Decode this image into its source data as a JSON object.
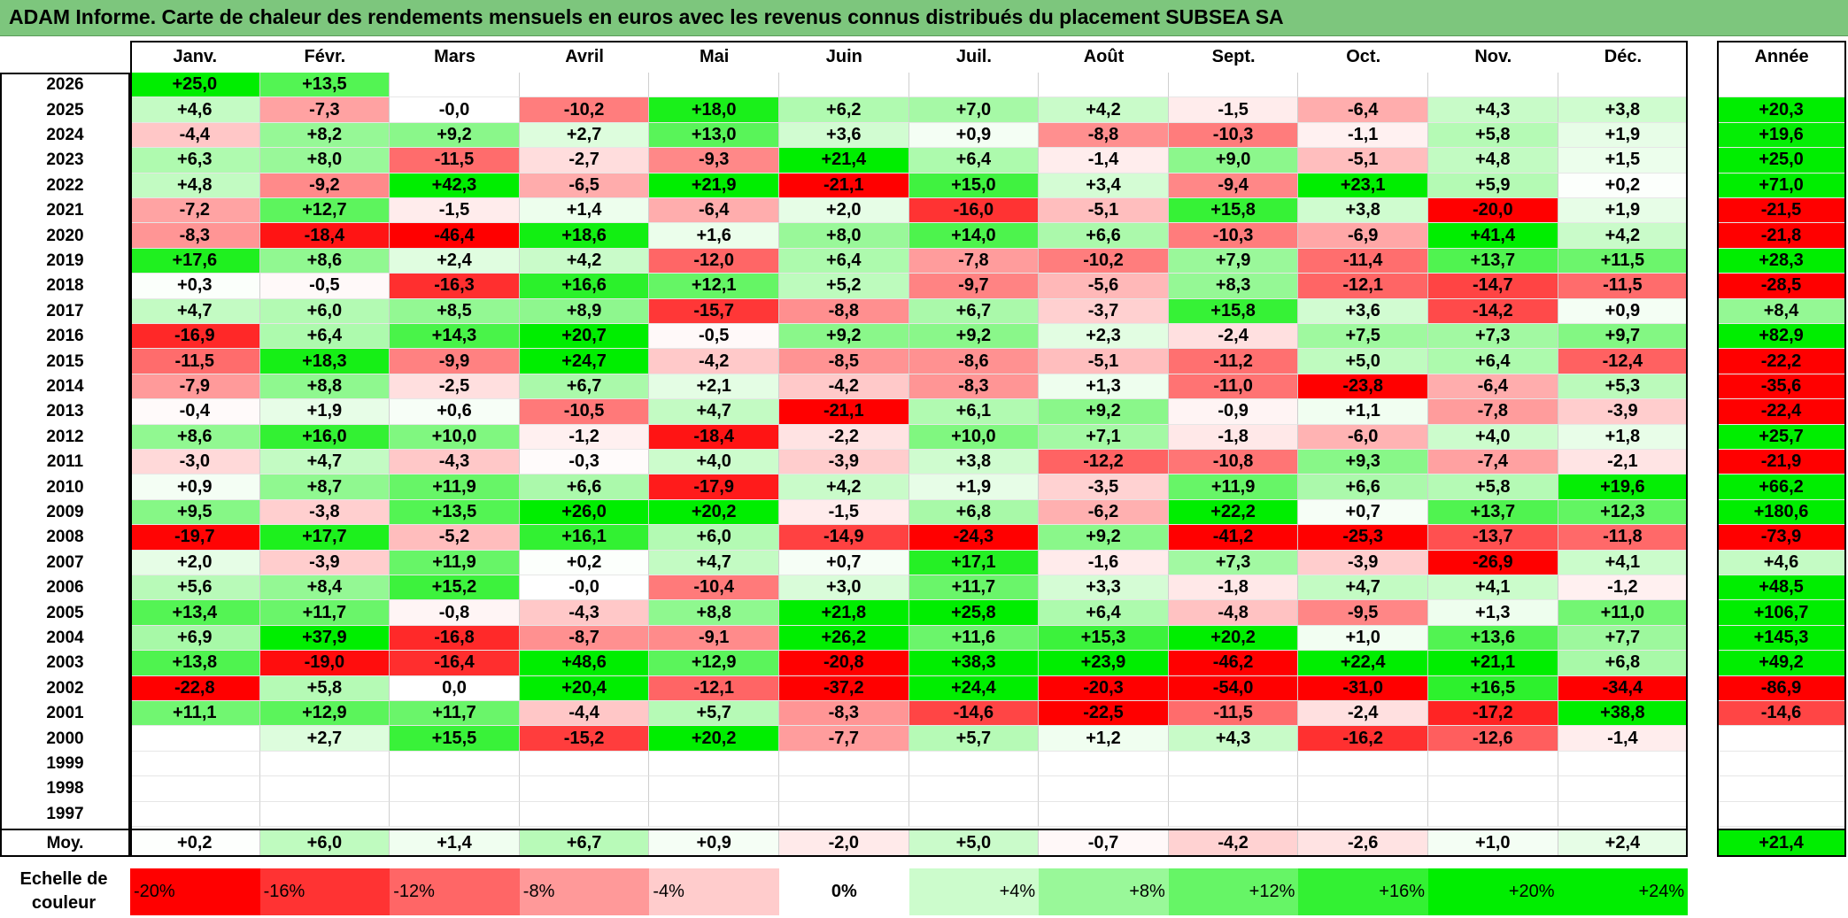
{
  "title": "ADAM Informe. Carte de chaleur des rendements mensuels en euros avec les revenus connus distribués du placement SUBSEA SA",
  "chart_data": {
    "type": "heatmap",
    "columns": [
      "Janv.",
      "Févr.",
      "Mars",
      "Avril",
      "Mai",
      "Juin",
      "Juil.",
      "Août",
      "Sept.",
      "Oct.",
      "Nov.",
      "Déc."
    ],
    "annual_header": "Année",
    "rows": [
      {
        "year": "2026",
        "values": [
          "+25,0",
          "+13,5",
          "",
          "",
          "",
          "",
          "",
          "",
          "",
          "",
          "",
          ""
        ],
        "annual": ""
      },
      {
        "year": "2025",
        "values": [
          "+4,6",
          "-7,3",
          "-0,0",
          "-10,2",
          "+18,0",
          "+6,2",
          "+7,0",
          "+4,2",
          "-1,5",
          "-6,4",
          "+4,3",
          "+3,8"
        ],
        "annual": "+20,3"
      },
      {
        "year": "2024",
        "values": [
          "-4,4",
          "+8,2",
          "+9,2",
          "+2,7",
          "+13,0",
          "+3,6",
          "+0,9",
          "-8,8",
          "-10,3",
          "-1,1",
          "+5,8",
          "+1,9"
        ],
        "annual": "+19,6"
      },
      {
        "year": "2023",
        "values": [
          "+6,3",
          "+8,0",
          "-11,5",
          "-2,7",
          "-9,3",
          "+21,4",
          "+6,4",
          "-1,4",
          "+9,0",
          "-5,1",
          "+4,8",
          "+1,5"
        ],
        "annual": "+25,0"
      },
      {
        "year": "2022",
        "values": [
          "+4,8",
          "-9,2",
          "+42,3",
          "-6,5",
          "+21,9",
          "-21,1",
          "+15,0",
          "+3,4",
          "-9,4",
          "+23,1",
          "+5,9",
          "+0,2"
        ],
        "annual": "+71,0"
      },
      {
        "year": "2021",
        "values": [
          "-7,2",
          "+12,7",
          "-1,5",
          "+1,4",
          "-6,4",
          "+2,0",
          "-16,0",
          "-5,1",
          "+15,8",
          "+3,8",
          "-20,0",
          "+1,9"
        ],
        "annual": "-21,5"
      },
      {
        "year": "2020",
        "values": [
          "-8,3",
          "-18,4",
          "-46,4",
          "+18,6",
          "+1,6",
          "+8,0",
          "+14,0",
          "+6,6",
          "-10,3",
          "-6,9",
          "+41,4",
          "+4,2"
        ],
        "annual": "-21,8"
      },
      {
        "year": "2019",
        "values": [
          "+17,6",
          "+8,6",
          "+2,4",
          "+4,2",
          "-12,0",
          "+6,4",
          "-7,8",
          "-10,2",
          "+7,9",
          "-11,4",
          "+13,7",
          "+11,5"
        ],
        "annual": "+28,3"
      },
      {
        "year": "2018",
        "values": [
          "+0,3",
          "-0,5",
          "-16,3",
          "+16,6",
          "+12,1",
          "+5,2",
          "-9,7",
          "-5,6",
          "+8,3",
          "-12,1",
          "-14,7",
          "-11,5"
        ],
        "annual": "-28,5"
      },
      {
        "year": "2017",
        "values": [
          "+4,7",
          "+6,0",
          "+8,5",
          "+8,9",
          "-15,7",
          "-8,8",
          "+6,7",
          "-3,7",
          "+15,8",
          "+3,6",
          "-14,2",
          "+0,9"
        ],
        "annual": "+8,4"
      },
      {
        "year": "2016",
        "values": [
          "-16,9",
          "+6,4",
          "+14,3",
          "+20,7",
          "-0,5",
          "+9,2",
          "+9,2",
          "+2,3",
          "-2,4",
          "+7,5",
          "+7,3",
          "+9,7"
        ],
        "annual": "+82,9"
      },
      {
        "year": "2015",
        "values": [
          "-11,5",
          "+18,3",
          "-9,9",
          "+24,7",
          "-4,2",
          "-8,5",
          "-8,6",
          "-5,1",
          "-11,2",
          "+5,0",
          "+6,4",
          "-12,4"
        ],
        "annual": "-22,2"
      },
      {
        "year": "2014",
        "values": [
          "-7,9",
          "+8,8",
          "-2,5",
          "+6,7",
          "+2,1",
          "-4,2",
          "-8,3",
          "+1,3",
          "-11,0",
          "-23,8",
          "-6,4",
          "+5,3"
        ],
        "annual": "-35,6"
      },
      {
        "year": "2013",
        "values": [
          "-0,4",
          "+1,9",
          "+0,6",
          "-10,5",
          "+4,7",
          "-21,1",
          "+6,1",
          "+9,2",
          "-0,9",
          "+1,1",
          "-7,8",
          "-3,9"
        ],
        "annual": "-22,4"
      },
      {
        "year": "2012",
        "values": [
          "+8,6",
          "+16,0",
          "+10,0",
          "-1,2",
          "-18,4",
          "-2,2",
          "+10,0",
          "+7,1",
          "-1,8",
          "-6,0",
          "+4,0",
          "+1,8"
        ],
        "annual": "+25,7"
      },
      {
        "year": "2011",
        "values": [
          "-3,0",
          "+4,7",
          "-4,3",
          "-0,3",
          "+4,0",
          "-3,9",
          "+3,8",
          "-12,2",
          "-10,8",
          "+9,3",
          "-7,4",
          "-2,1"
        ],
        "annual": "-21,9"
      },
      {
        "year": "2010",
        "values": [
          "+0,9",
          "+8,7",
          "+11,9",
          "+6,6",
          "-17,9",
          "+4,2",
          "+1,9",
          "-3,5",
          "+11,9",
          "+6,6",
          "+5,8",
          "+19,6"
        ],
        "annual": "+66,2"
      },
      {
        "year": "2009",
        "values": [
          "+9,5",
          "-3,8",
          "+13,5",
          "+26,0",
          "+20,2",
          "-1,5",
          "+6,8",
          "-6,2",
          "+22,2",
          "+0,7",
          "+13,7",
          "+12,3"
        ],
        "annual": "+180,6"
      },
      {
        "year": "2008",
        "values": [
          "-19,7",
          "+17,7",
          "-5,2",
          "+16,1",
          "+6,0",
          "-14,9",
          "-24,3",
          "+9,2",
          "-41,2",
          "-25,3",
          "-13,7",
          "-11,8"
        ],
        "annual": "-73,9"
      },
      {
        "year": "2007",
        "values": [
          "+2,0",
          "-3,9",
          "+11,9",
          "+0,2",
          "+4,7",
          "+0,7",
          "+17,1",
          "-1,6",
          "+7,3",
          "-3,9",
          "-26,9",
          "+4,1"
        ],
        "annual": "+4,6"
      },
      {
        "year": "2006",
        "values": [
          "+5,6",
          "+8,4",
          "+15,2",
          "-0,0",
          "-10,4",
          "+3,0",
          "+11,7",
          "+3,3",
          "-1,8",
          "+4,7",
          "+4,1",
          "-1,2"
        ],
        "annual": "+48,5"
      },
      {
        "year": "2005",
        "values": [
          "+13,4",
          "+11,7",
          "-0,8",
          "-4,3",
          "+8,8",
          "+21,8",
          "+25,8",
          "+6,4",
          "-4,8",
          "-9,5",
          "+1,3",
          "+11,0"
        ],
        "annual": "+106,7"
      },
      {
        "year": "2004",
        "values": [
          "+6,9",
          "+37,9",
          "-16,8",
          "-8,7",
          "-9,1",
          "+26,2",
          "+11,6",
          "+15,3",
          "+20,2",
          "+1,0",
          "+13,6",
          "+7,7"
        ],
        "annual": "+145,3"
      },
      {
        "year": "2003",
        "values": [
          "+13,8",
          "-19,0",
          "-16,4",
          "+48,6",
          "+12,9",
          "-20,8",
          "+38,3",
          "+23,9",
          "-46,2",
          "+22,4",
          "+21,1",
          "+6,8"
        ],
        "annual": "+49,2"
      },
      {
        "year": "2002",
        "values": [
          "-22,8",
          "+5,8",
          "0,0",
          "+20,4",
          "-12,1",
          "-37,2",
          "+24,4",
          "-20,3",
          "-54,0",
          "-31,0",
          "+16,5",
          "-34,4"
        ],
        "annual": "-86,9"
      },
      {
        "year": "2001",
        "values": [
          "+11,1",
          "+12,9",
          "+11,7",
          "-4,4",
          "+5,7",
          "-8,3",
          "-14,6",
          "-22,5",
          "-11,5",
          "-2,4",
          "-17,2",
          "+38,8"
        ],
        "annual": "-14,6"
      },
      {
        "year": "2000",
        "values": [
          "",
          "+2,7",
          "+15,5",
          "-15,2",
          "+20,2",
          "-7,7",
          "+5,7",
          "+1,2",
          "+4,3",
          "-16,2",
          "-12,6",
          "-1,4"
        ],
        "annual": ""
      },
      {
        "year": "1999",
        "values": [
          "",
          "",
          "",
          "",
          "",
          "",
          "",
          "",
          "",
          "",
          "",
          ""
        ],
        "annual": ""
      },
      {
        "year": "1998",
        "values": [
          "",
          "",
          "",
          "",
          "",
          "",
          "",
          "",
          "",
          "",
          "",
          ""
        ],
        "annual": ""
      },
      {
        "year": "1997",
        "values": [
          "",
          "",
          "",
          "",
          "",
          "",
          "",
          "",
          "",
          "",
          "",
          ""
        ],
        "annual": ""
      }
    ],
    "average": {
      "label": "Moy.",
      "values": [
        "+0,2",
        "+6,0",
        "+1,4",
        "+6,7",
        "+0,9",
        "-2,0",
        "+5,0",
        "-0,7",
        "-4,2",
        "-2,6",
        "+1,0",
        "+2,4"
      ],
      "annual": "+21,4"
    },
    "color_scale": {
      "label": "Echelle de couleur",
      "steps": [
        "-20%",
        "-16%",
        "-12%",
        "-8%",
        "-4%",
        "0%",
        "+4%",
        "+8%",
        "+12%",
        "+16%",
        "+20%",
        "+24%"
      ]
    },
    "colors": {
      "negative_max": "#ff0000",
      "neutral": "#ffffff",
      "positive_max": "#00ee00",
      "title_bg": "#7dc67d"
    }
  }
}
